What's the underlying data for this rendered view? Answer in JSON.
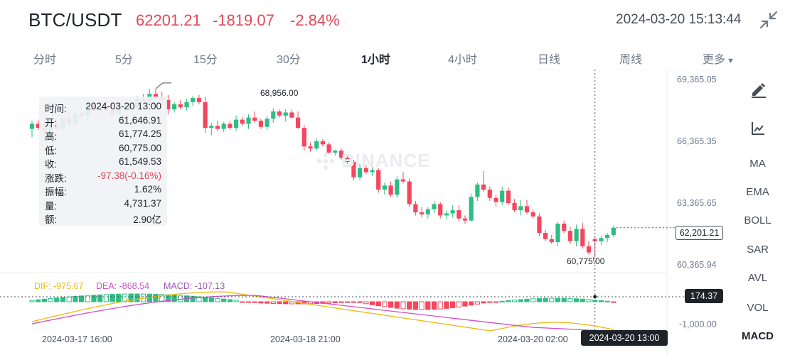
{
  "header": {
    "pair": "BTC/USDT",
    "price": "62201.21",
    "change": "-1819.07",
    "change_pct": "-2.84%",
    "datetime": "2024-03-20 15:13:44",
    "shrink_icon": "collapse-arrows-icon"
  },
  "tabs": [
    {
      "label": "分时",
      "active": false
    },
    {
      "label": "5分",
      "active": false
    },
    {
      "label": "15分",
      "active": false
    },
    {
      "label": "30分",
      "active": false
    },
    {
      "label": "1小时",
      "active": true
    },
    {
      "label": "4小时",
      "active": false
    },
    {
      "label": "日线",
      "active": false
    },
    {
      "label": "周线",
      "active": false
    },
    {
      "label": "更多",
      "active": false
    }
  ],
  "tooltip": {
    "rows": [
      {
        "k": "时间:",
        "v": "2024-03-20 13:00"
      },
      {
        "k": "开:",
        "v": "61,646.91"
      },
      {
        "k": "高:",
        "v": "61,774.25"
      },
      {
        "k": "低:",
        "v": "60,775.00"
      },
      {
        "k": "收:",
        "v": "61,549.53"
      },
      {
        "k": "涨跌:",
        "v": "-97.38(-0.16%)"
      },
      {
        "k": "振幅:",
        "v": "1.62%"
      },
      {
        "k": "量:",
        "v": "4,731.37"
      },
      {
        "k": "额:",
        "v": "2.90亿"
      }
    ]
  },
  "price_axis": [
    "69,365.05",
    "66,365.35",
    "63,365.65",
    "60,365.94"
  ],
  "price_tag": "62,201.21",
  "annotations": {
    "high": "68,956.00",
    "low": "60,775.00"
  },
  "indicators": {
    "dif": "DIF: -975.67",
    "dea": "DEA: -868.54",
    "macd": "MACD: -107.13"
  },
  "macd_axis": {
    "value_tag": "174.37",
    "low_label": "-1,000.00"
  },
  "time_axis": [
    "2024-03-17 16:00",
    "2024-03-18 21:00",
    "2024-03-20 02:00"
  ],
  "time_tag": "2024-03-20 13:00",
  "watermark": "BINANCE",
  "side_tools": {
    "icons": [
      "draw-pen-icon",
      "chart-line-icon"
    ],
    "items": [
      {
        "label": "MA",
        "active": false
      },
      {
        "label": "EMA",
        "active": false
      },
      {
        "label": "BOLL",
        "active": false
      },
      {
        "label": "SAR",
        "active": false
      },
      {
        "label": "AVL",
        "active": false
      },
      {
        "label": "VOL",
        "active": false
      },
      {
        "label": "MACD",
        "active": true
      }
    ]
  },
  "colors": {
    "up": "#2ebd85",
    "down": "#f6465d",
    "dif": "#f0b90b",
    "dea": "#d04fc8",
    "accent_text": "#e04a59"
  },
  "chart_data": {
    "type": "candlestick",
    "interval": "1h",
    "y_axis_ticks": [
      69365.05,
      66365.35,
      63365.65,
      60365.94
    ],
    "last_price": 62201.21,
    "highlight_high": 68956.0,
    "highlight_low": 60775.0,
    "candles": [
      [
        67000,
        67400,
        66600,
        67250
      ],
      [
        67250,
        67450,
        66950,
        67050
      ],
      [
        67050,
        67350,
        66800,
        66900
      ],
      [
        66900,
        67200,
        66700,
        67150
      ],
      [
        67150,
        67350,
        66900,
        67000
      ],
      [
        67000,
        67700,
        66800,
        67500
      ],
      [
        67500,
        67800,
        67200,
        67300
      ],
      [
        67300,
        67950,
        67100,
        67750
      ],
      [
        67750,
        68100,
        67500,
        67650
      ],
      [
        67650,
        68300,
        67400,
        68150
      ],
      [
        68150,
        68350,
        67800,
        67900
      ],
      [
        67900,
        68200,
        67650,
        68050
      ],
      [
        68050,
        68300,
        67800,
        67900
      ],
      [
        67900,
        68150,
        67600,
        67700
      ],
      [
        67700,
        68100,
        67500,
        68000
      ],
      [
        68000,
        68300,
        67800,
        68150
      ],
      [
        68150,
        68400,
        67900,
        68050
      ],
      [
        68050,
        68600,
        67900,
        68450
      ],
      [
        68450,
        68700,
        68150,
        68250
      ],
      [
        68250,
        68950,
        68100,
        68700
      ],
      [
        68700,
        68956,
        68400,
        68550
      ],
      [
        68550,
        68800,
        68300,
        68400
      ],
      [
        68400,
        68650,
        67700,
        67950
      ],
      [
        67950,
        68300,
        67800,
        68200
      ],
      [
        68200,
        68400,
        67950,
        68050
      ],
      [
        68050,
        68450,
        67900,
        68300
      ],
      [
        68300,
        68600,
        68100,
        68500
      ],
      [
        68500,
        68650,
        68200,
        68300
      ],
      [
        68300,
        68550,
        66800,
        67050
      ],
      [
        67050,
        67300,
        66700,
        67150
      ],
      [
        67150,
        67400,
        66900,
        67000
      ],
      [
        67000,
        67350,
        66850,
        67250
      ],
      [
        67250,
        67400,
        66950,
        67050
      ],
      [
        67050,
        67650,
        66900,
        67450
      ],
      [
        67450,
        67600,
        67150,
        67250
      ],
      [
        67250,
        67700,
        67000,
        67550
      ],
      [
        67550,
        67850,
        67300,
        67400
      ],
      [
        67400,
        67500,
        67000,
        67100
      ],
      [
        67100,
        67650,
        66950,
        67500
      ],
      [
        67500,
        68000,
        67300,
        67850
      ],
      [
        67850,
        67950,
        67550,
        67650
      ],
      [
        67650,
        67950,
        67350,
        67800
      ],
      [
        67800,
        67950,
        67500,
        67550
      ],
      [
        67550,
        67850,
        67000,
        67050
      ],
      [
        67050,
        67200,
        65950,
        66150
      ],
      [
        66150,
        66350,
        65900,
        66050
      ],
      [
        66050,
        66550,
        65950,
        66400
      ],
      [
        66400,
        66500,
        66150,
        66250
      ],
      [
        66250,
        66350,
        65800,
        65850
      ],
      [
        65850,
        66000,
        65700,
        65950
      ],
      [
        65950,
        66050,
        65500,
        65600
      ],
      [
        65600,
        65750,
        65300,
        65400
      ],
      [
        65400,
        65500,
        64500,
        64650
      ],
      [
        64650,
        65300,
        64500,
        65100
      ],
      [
        65100,
        65250,
        64800,
        64900
      ],
      [
        64900,
        65150,
        64700,
        65000
      ],
      [
        65000,
        65100,
        63900,
        64050
      ],
      [
        64050,
        64400,
        63800,
        64250
      ],
      [
        64250,
        64450,
        63700,
        63800
      ],
      [
        63800,
        64700,
        63650,
        64550
      ],
      [
        64550,
        64900,
        64350,
        64450
      ],
      [
        64450,
        64600,
        63200,
        63350
      ],
      [
        63350,
        63500,
        62800,
        62950
      ],
      [
        62950,
        63200,
        62700,
        62850
      ],
      [
        62850,
        63200,
        62650,
        63100
      ],
      [
        63100,
        63500,
        62900,
        63350
      ],
      [
        63350,
        63450,
        62650,
        62800
      ],
      [
        62800,
        63050,
        62600,
        62900
      ],
      [
        62900,
        63300,
        62700,
        63050
      ],
      [
        63050,
        63300,
        62500,
        62650
      ],
      [
        62650,
        62800,
        62400,
        62550
      ],
      [
        62550,
        63850,
        62500,
        63700
      ],
      [
        63700,
        64400,
        63500,
        64300
      ],
      [
        64300,
        64950,
        63950,
        64050
      ],
      [
        64050,
        64200,
        63500,
        63650
      ],
      [
        63650,
        63800,
        63200,
        63450
      ],
      [
        63450,
        64200,
        63300,
        64000
      ],
      [
        64000,
        64150,
        63300,
        63400
      ],
      [
        63400,
        63600,
        62950,
        63050
      ],
      [
        63050,
        63550,
        62800,
        63250
      ],
      [
        63250,
        63550,
        62850,
        62950
      ],
      [
        62950,
        63100,
        62650,
        62750
      ],
      [
        62750,
        62900,
        61800,
        61950
      ],
      [
        61950,
        62100,
        61550,
        61650
      ],
      [
        61650,
        61850,
        61400,
        61500
      ],
      [
        61500,
        62500,
        61300,
        62400
      ],
      [
        62400,
        62550,
        61950,
        62050
      ],
      [
        62050,
        62250,
        61400,
        61550
      ],
      [
        61550,
        62350,
        61300,
        62150
      ],
      [
        62150,
        62450,
        61200,
        61300
      ],
      [
        61300,
        61550,
        60900,
        61000
      ],
      [
        61646.91,
        61774.25,
        60775,
        61549.53
      ],
      [
        61549.53,
        61800,
        61350,
        61700
      ],
      [
        61700,
        61950,
        61500,
        61850
      ],
      [
        61850,
        62300,
        61750,
        62201.21
      ]
    ],
    "macd": {
      "axis_low": -1000.0,
      "current_tag": 174.37,
      "dif_last": -975.67,
      "dea_last": -868.54,
      "hist_last": -107.13
    }
  }
}
